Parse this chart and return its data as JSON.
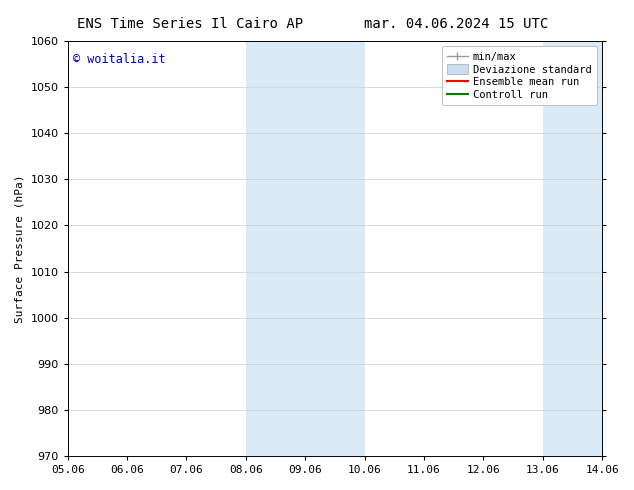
{
  "title_left": "ENS Time Series Il Cairo AP",
  "title_right": "mar. 04.06.2024 15 UTC",
  "ylabel": "Surface Pressure (hPa)",
  "ylim": [
    970,
    1060
  ],
  "yticks": [
    970,
    980,
    990,
    1000,
    1010,
    1020,
    1030,
    1040,
    1050,
    1060
  ],
  "x_tick_labels": [
    "05.06",
    "06.06",
    "07.06",
    "08.06",
    "09.06",
    "10.06",
    "11.06",
    "12.06",
    "13.06",
    "14.06"
  ],
  "x_tick_positions": [
    0,
    1,
    2,
    3,
    4,
    5,
    6,
    7,
    8,
    9
  ],
  "shaded_bands": [
    {
      "x_start": 3,
      "x_end": 5
    },
    {
      "x_start": 8,
      "x_end": 9
    }
  ],
  "shaded_color": "#daeaf7",
  "watermark_text": "© woitalia.it",
  "watermark_color": "#0000bb",
  "bg_color": "#ffffff",
  "grid_color": "#cccccc",
  "title_fontsize": 10,
  "tick_fontsize": 8,
  "ylabel_fontsize": 8,
  "legend_fontsize": 7.5,
  "minmax_color": "#999999",
  "stddev_color": "#c8dff0",
  "ensemble_color": "#ff0000",
  "control_color": "#008000"
}
